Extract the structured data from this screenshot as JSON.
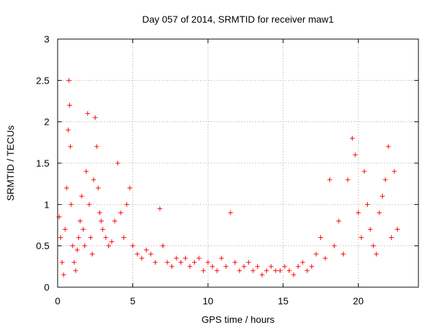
{
  "chart_data": {
    "type": "scatter",
    "title": "Day 057 of 2014, SRMTID for receiver maw1",
    "xlabel": "GPS time / hours",
    "ylabel": "SRMTID / TECUs",
    "xlim": [
      0,
      24
    ],
    "ylim": [
      0,
      3
    ],
    "xticks": [
      "0",
      "5",
      "10",
      "15",
      "20"
    ],
    "xtick_values": [
      0,
      5,
      10,
      15,
      20
    ],
    "yticks": [
      "0",
      "0.5",
      "1",
      "1.5",
      "2",
      "2.5",
      "3"
    ],
    "ytick_values": [
      0,
      0.5,
      1,
      1.5,
      2,
      2.5,
      3
    ],
    "grid": true,
    "marker": "+",
    "color": "#ff0000",
    "series": [
      {
        "name": "maw1",
        "x": [
          0.1,
          0.2,
          0.3,
          0.4,
          0.5,
          0.6,
          0.7,
          0.75,
          0.8,
          0.85,
          0.9,
          1.0,
          1.1,
          1.2,
          1.3,
          1.4,
          1.5,
          1.6,
          1.7,
          1.8,
          1.9,
          2.0,
          2.1,
          2.2,
          2.3,
          2.4,
          2.5,
          2.6,
          2.7,
          2.8,
          2.9,
          3.0,
          3.2,
          3.4,
          3.6,
          3.8,
          4.0,
          4.2,
          4.4,
          4.6,
          4.8,
          5.0,
          5.3,
          5.6,
          5.9,
          6.2,
          6.5,
          6.8,
          7.0,
          7.3,
          7.6,
          7.9,
          8.2,
          8.5,
          8.8,
          9.1,
          9.4,
          9.7,
          10.0,
          10.3,
          10.6,
          10.9,
          11.2,
          11.5,
          11.8,
          12.1,
          12.4,
          12.7,
          13.0,
          13.3,
          13.6,
          13.9,
          14.2,
          14.5,
          14.8,
          15.1,
          15.4,
          15.7,
          16.0,
          16.3,
          16.6,
          16.9,
          17.2,
          17.5,
          17.8,
          18.1,
          18.4,
          18.7,
          19.0,
          19.3,
          19.6,
          19.8,
          20.0,
          20.2,
          20.4,
          20.6,
          20.8,
          21.0,
          21.2,
          21.4,
          21.6,
          21.8,
          22.0,
          22.2,
          22.4,
          22.6
        ],
        "y": [
          0.85,
          0.6,
          0.3,
          0.15,
          0.7,
          1.2,
          1.9,
          2.5,
          2.2,
          1.7,
          1.0,
          0.5,
          0.3,
          0.2,
          0.45,
          0.6,
          0.8,
          1.1,
          0.7,
          0.5,
          1.4,
          2.1,
          1.0,
          0.6,
          0.4,
          1.3,
          2.05,
          1.7,
          1.2,
          0.9,
          0.8,
          0.7,
          0.6,
          0.5,
          0.55,
          0.8,
          1.5,
          0.9,
          0.6,
          1.0,
          1.2,
          0.5,
          0.4,
          0.35,
          0.45,
          0.4,
          0.3,
          0.95,
          0.5,
          0.3,
          0.25,
          0.35,
          0.3,
          0.35,
          0.25,
          0.3,
          0.35,
          0.2,
          0.3,
          0.25,
          0.2,
          0.35,
          0.25,
          0.9,
          0.3,
          0.2,
          0.25,
          0.3,
          0.2,
          0.25,
          0.15,
          0.2,
          0.25,
          0.2,
          0.2,
          0.25,
          0.2,
          0.15,
          0.25,
          0.3,
          0.2,
          0.25,
          0.4,
          0.6,
          0.35,
          1.3,
          0.5,
          0.8,
          0.4,
          1.3,
          1.8,
          1.6,
          0.9,
          0.6,
          1.4,
          1.0,
          0.7,
          0.5,
          0.4,
          0.9,
          1.1,
          1.3,
          1.7,
          0.6,
          1.4,
          0.7
        ]
      }
    ]
  }
}
